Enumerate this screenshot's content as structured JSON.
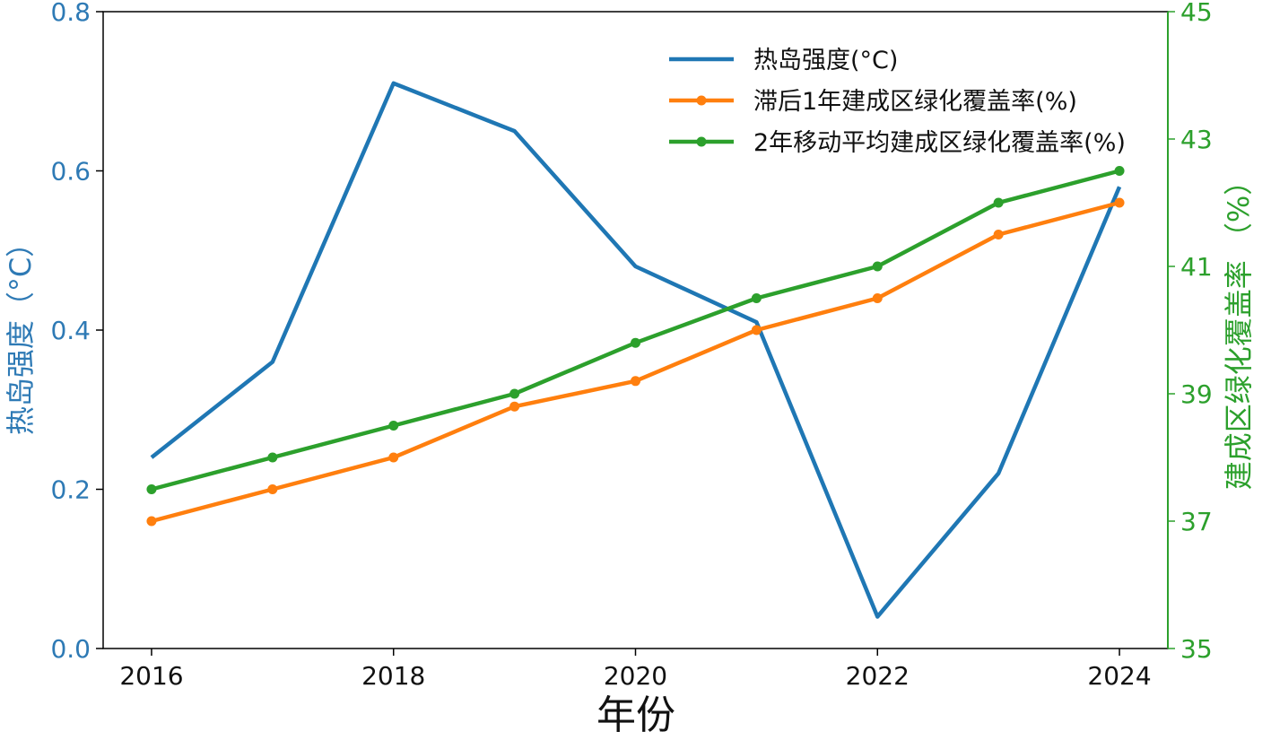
{
  "chart_data": {
    "type": "line",
    "title": "",
    "xlabel": "年份",
    "ylabel_left": "热岛强度（°C）",
    "ylabel_right": "建成区绿化覆盖率 （%）",
    "x": [
      2016,
      2017,
      2018,
      2019,
      2020,
      2021,
      2022,
      2023,
      2024
    ],
    "x_ticks": [
      "2016",
      "2018",
      "2020",
      "2022",
      "2024"
    ],
    "x_range": [
      2015.6,
      2024.4
    ],
    "y_left": {
      "range": [
        0,
        0.8
      ],
      "ticks": [
        "0.0",
        "0.2",
        "0.4",
        "0.6",
        "0.8"
      ]
    },
    "y_right": {
      "range": [
        35,
        45
      ],
      "ticks": [
        "35",
        "37",
        "39",
        "41",
        "43",
        "45"
      ]
    },
    "legend_position": "top-right",
    "grid": false,
    "series": [
      {
        "name": "热岛强度(°C)",
        "axis": "left",
        "color": "#1f77b4",
        "markers": false,
        "values": [
          0.24,
          0.36,
          0.71,
          0.65,
          0.48,
          0.41,
          0.04,
          0.22,
          0.58
        ]
      },
      {
        "name": "滞后1年建成区绿化覆盖率(%)",
        "axis": "right",
        "color": "#ff7f0e",
        "markers": true,
        "values": [
          37.0,
          37.5,
          38.0,
          38.8,
          39.2,
          40.0,
          40.5,
          41.5,
          42.0
        ]
      },
      {
        "name": "2年移动平均建成区绿化覆盖率(%)",
        "axis": "right",
        "color": "#2ca02c",
        "markers": true,
        "values": [
          37.5,
          38.0,
          38.5,
          39.0,
          39.8,
          40.5,
          41.0,
          42.0,
          42.5
        ]
      }
    ]
  }
}
